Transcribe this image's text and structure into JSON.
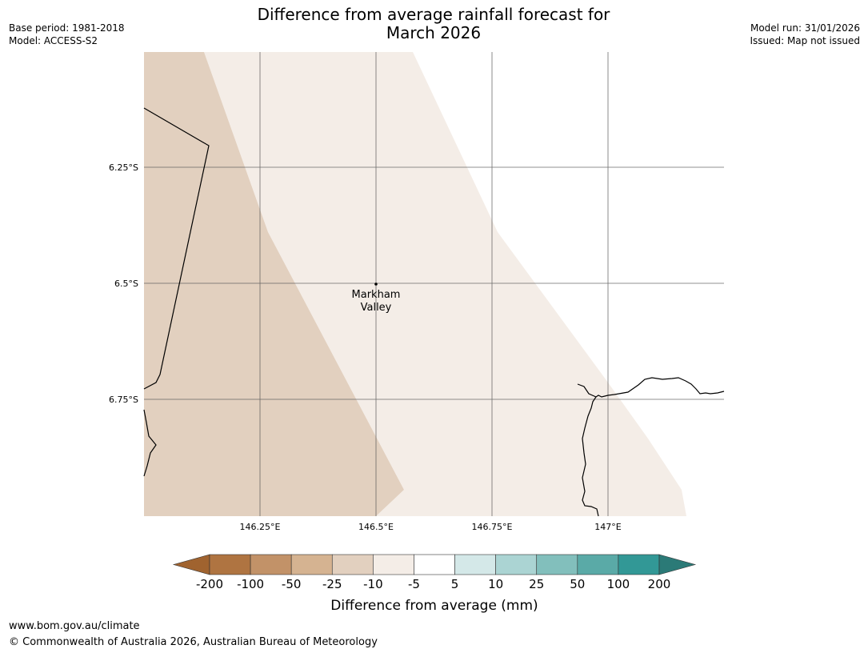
{
  "title": {
    "line1": "Difference from average rainfall forecast for",
    "line2": "March 2026"
  },
  "meta_left": {
    "base_period": "Base period: 1981-2018",
    "model": "Model: ACCESS-S2"
  },
  "meta_right": {
    "model_run": "Model run: 31/01/2026",
    "issued": "Issued: Map not issued"
  },
  "map": {
    "lat_labels": [
      "6.25°S",
      "6.5°S",
      "6.75°S"
    ],
    "lon_labels": [
      "146.25°E",
      "146.5°E",
      "146.75°E",
      "147°E"
    ],
    "place": {
      "line1": "Markham",
      "line2": "Valley"
    },
    "region_colors": {
      "band_minus25_minus10": "#e2d0bf",
      "band_minus10_minus5": "#f4ede7",
      "band_minus5_5": "#ffffff"
    }
  },
  "colorbar": {
    "ticks": [
      "-200",
      "-100",
      "-50",
      "-25",
      "-10",
      "-5",
      "5",
      "10",
      "25",
      "50",
      "100",
      "200"
    ],
    "colors": [
      "#a0632f",
      "#af7441",
      "#c29268",
      "#d5b391",
      "#e2d0bf",
      "#f4ede7",
      "#ffffff",
      "#d4e8e8",
      "#abd4d3",
      "#82bfbc",
      "#5aaaa7",
      "#329896",
      "#2b7a77"
    ],
    "label": "Difference from average (mm)"
  },
  "footer": {
    "url": "www.bom.gov.au/climate",
    "copyright": "© Commonwealth of Australia 2026, Australian Bureau of Meteorology"
  }
}
